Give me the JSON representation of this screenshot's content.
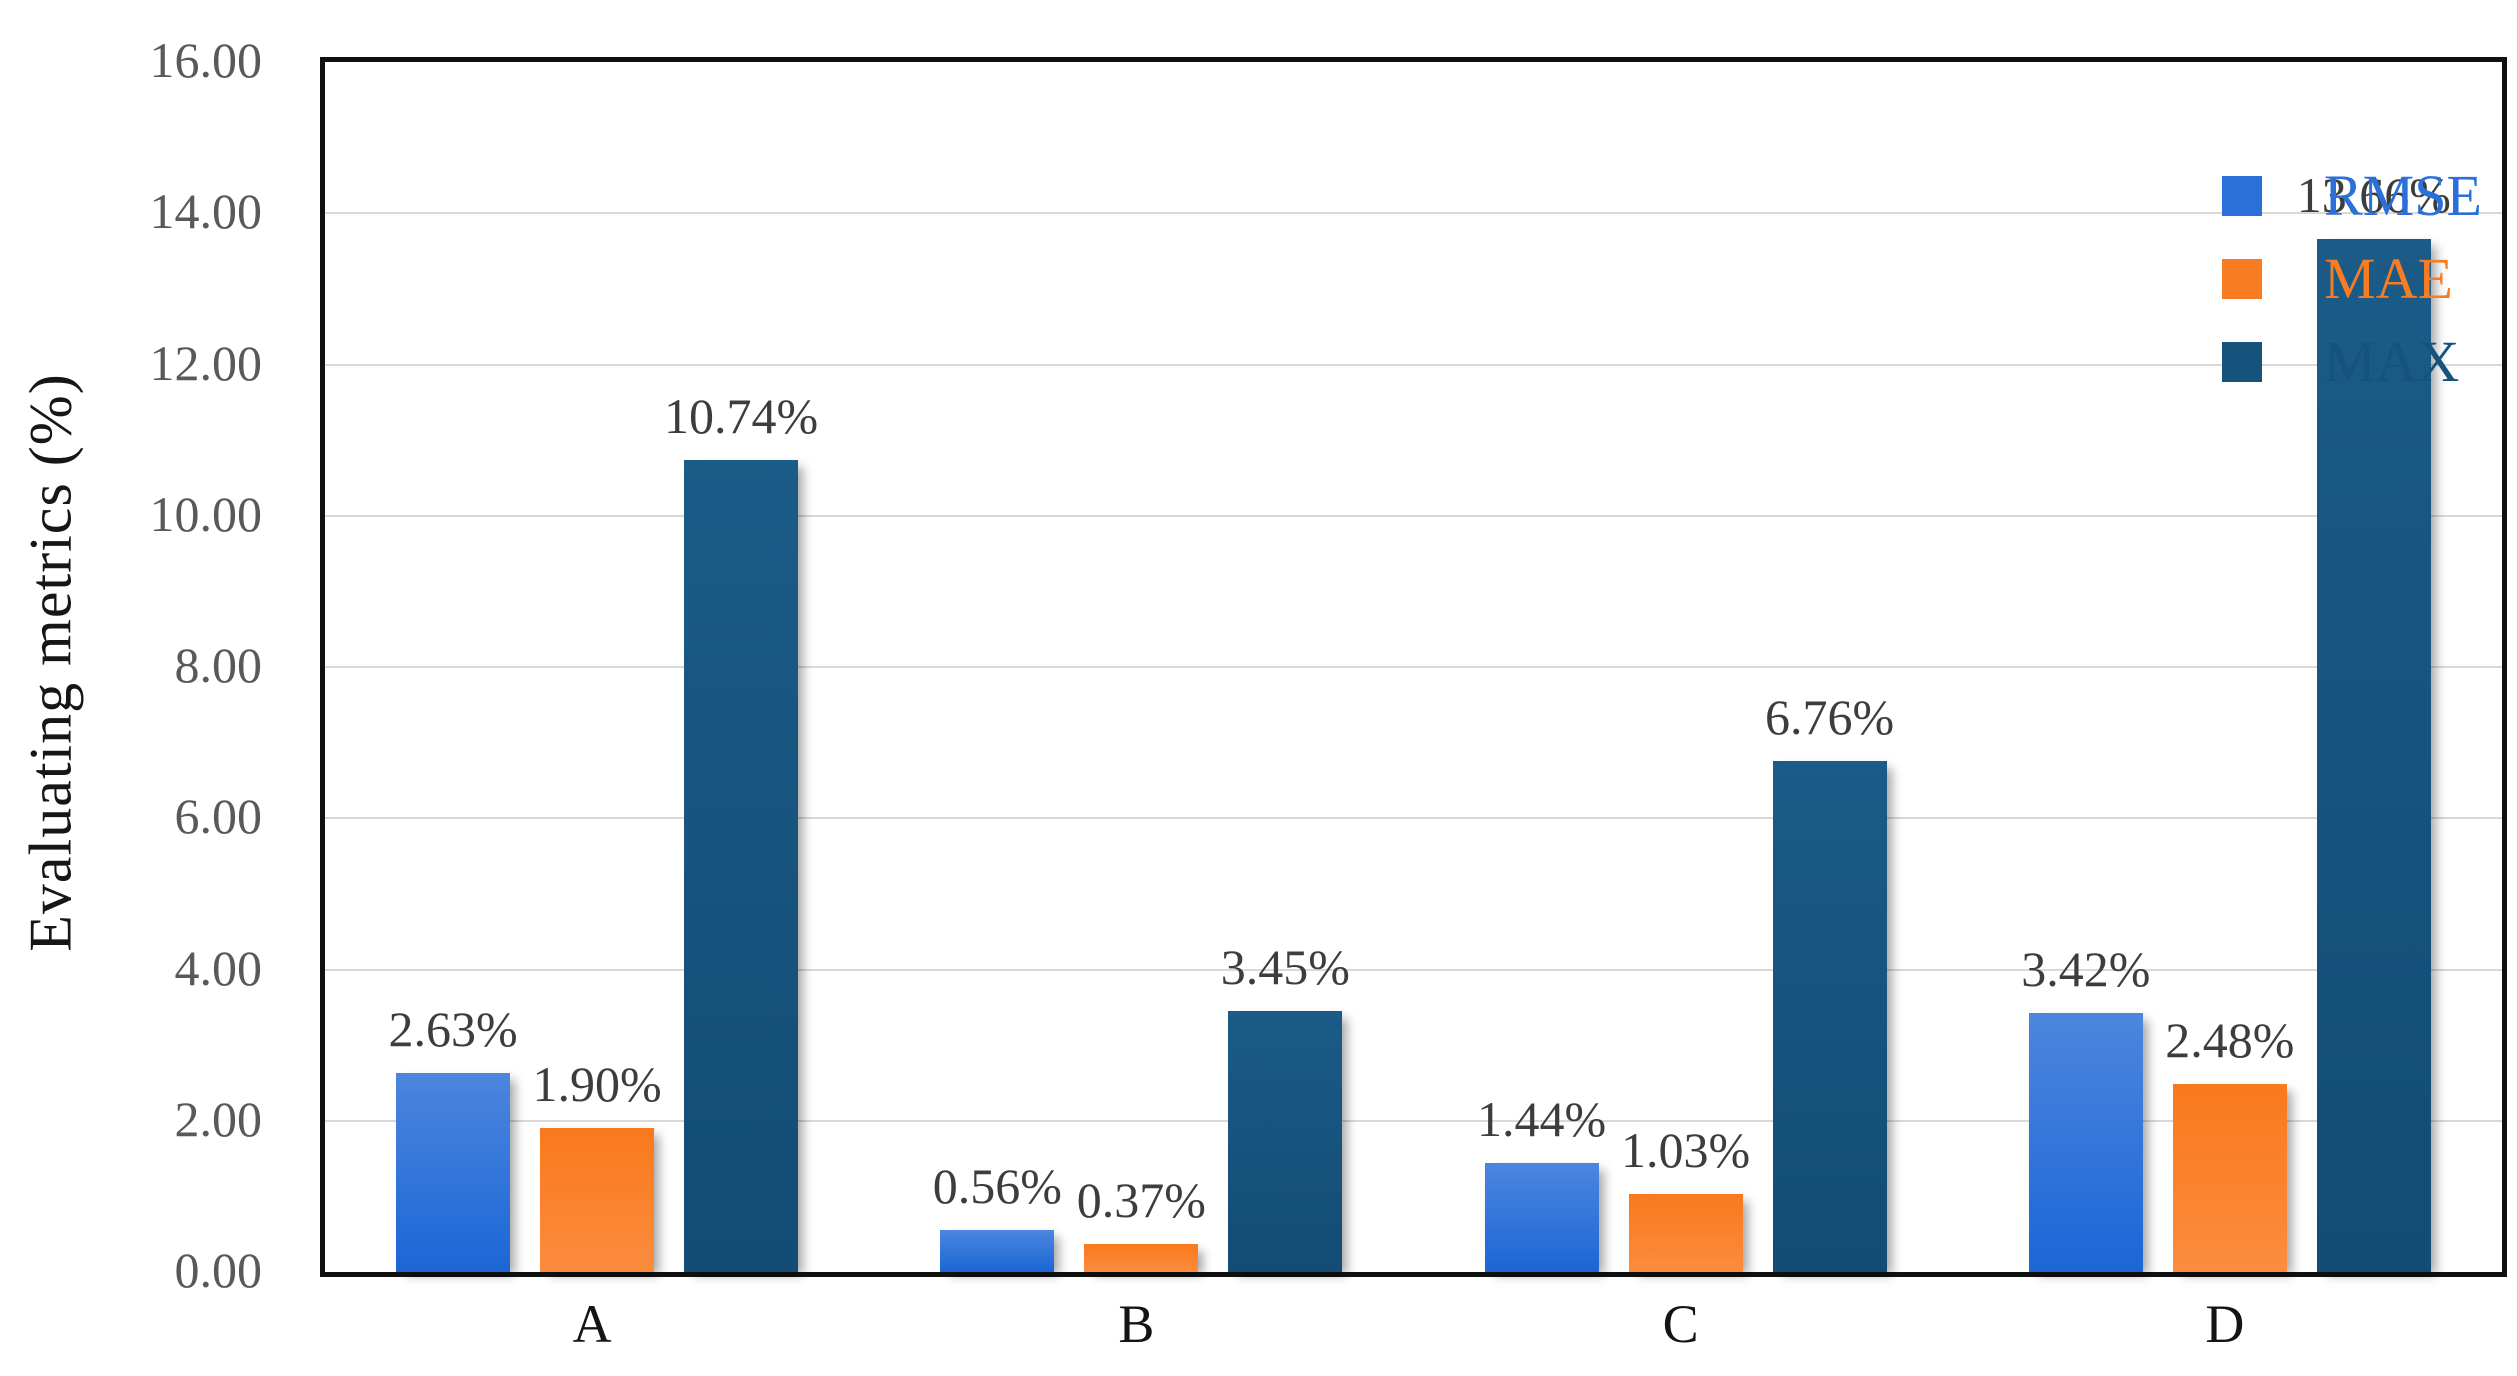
{
  "chart_data": {
    "type": "bar",
    "title": "",
    "ylabel": "Evaluating metrics (%)",
    "xlabel": "",
    "categories": [
      "A",
      "B",
      "C",
      "D"
    ],
    "series": [
      {
        "name": "RMSE",
        "color": "#2B70D9",
        "gradient": [
          "#4C86DE",
          "#1B66D6"
        ],
        "values": [
          2.63,
          0.56,
          1.44,
          3.42
        ],
        "data_labels": [
          "2.63%",
          "0.56%",
          "1.44%",
          "3.42%"
        ]
      },
      {
        "name": "MAE",
        "color": "#F87C21",
        "gradient": [
          "#F9791D",
          "#FB8C3E"
        ],
        "values": [
          1.9,
          0.37,
          1.03,
          2.48
        ],
        "data_labels": [
          "1.90%",
          "0.37%",
          "1.03%",
          "2.48%"
        ]
      },
      {
        "name": "MAX",
        "color": "#15527C",
        "gradient": [
          "#1B5B87",
          "#134C74"
        ],
        "values": [
          10.74,
          3.45,
          6.76,
          13.66
        ],
        "data_labels": [
          "10.74%",
          "3.45%",
          "6.76%",
          "13.66%"
        ]
      }
    ],
    "ylim": [
      0,
      16
    ],
    "ytick_step": 2,
    "yticks": [
      {
        "value": 0,
        "label": "0.00"
      },
      {
        "value": 2,
        "label": "2.00"
      },
      {
        "value": 4,
        "label": "4.00"
      },
      {
        "value": 6,
        "label": "6.00"
      },
      {
        "value": 8,
        "label": "8.00"
      },
      {
        "value": 10,
        "label": "10.00"
      },
      {
        "value": 12,
        "label": "12.00"
      },
      {
        "value": 14,
        "label": "14.00"
      },
      {
        "value": 16,
        "label": "16.00"
      }
    ],
    "grid": true,
    "legend_position": "top-right",
    "colors": {
      "background": "#FFFFFF",
      "plot_border": "#101010",
      "gridline": "#D9D9D9",
      "y_tick_text": "#595959",
      "data_label_text": "#3D3D3D",
      "x_label_text": "#141414",
      "y_axis_title_text": "#161616"
    }
  }
}
